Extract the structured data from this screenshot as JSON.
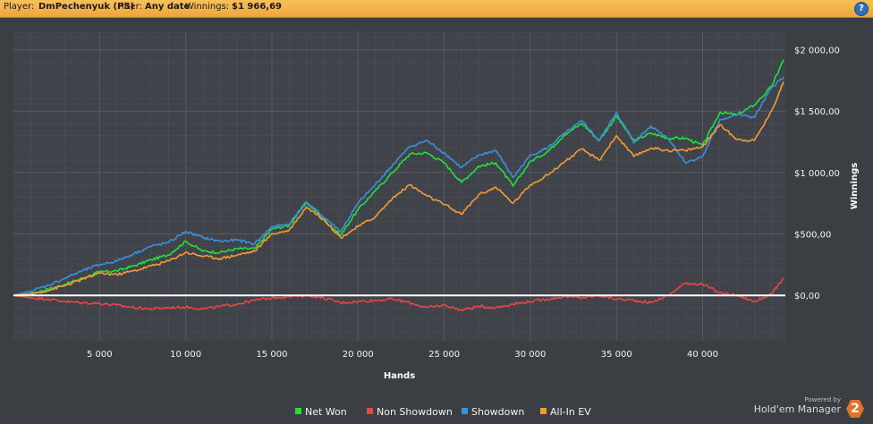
{
  "header": {
    "player_label": "Player:",
    "player_value": "DmPechenyuk (PS)",
    "filter_label": "Filter:",
    "filter_value": "Any date",
    "winnings_label": "Winnings:",
    "winnings_value": "$1 966,69",
    "help_label": "?"
  },
  "branding": {
    "powered_by": "Powered by",
    "name": "Hold'em Manager",
    "logo_text": "2"
  },
  "colors": {
    "background": "#3b3f44",
    "plot_bg": "#40444a",
    "grid": "#555a61",
    "zero_line": "#ffffff",
    "header": "#eea53a",
    "brand_icon": "#e2722a"
  },
  "chart_data": {
    "type": "line",
    "xlabel": "Hands",
    "ylabel": "Winnings",
    "xlim": [
      0,
      44800
    ],
    "ylim": [
      -370,
      2150
    ],
    "x_ticks": [
      5000,
      10000,
      15000,
      20000,
      25000,
      30000,
      35000,
      40000
    ],
    "x_tick_labels": [
      "5 000",
      "10 000",
      "15 000",
      "20 000",
      "25 000",
      "30 000",
      "35 000",
      "40 000"
    ],
    "y_ticks": [
      0,
      500,
      1000,
      1500,
      2000
    ],
    "y_tick_labels": [
      "$0,00",
      "$500,00",
      "$1 000,00",
      "$1 500,00",
      "$2 000,00"
    ],
    "grid": true,
    "legend_position": "bottom-center",
    "series": [
      {
        "name": "Net Won",
        "color": "#22e03a",
        "x": [
          0,
          1000,
          2000,
          3000,
          4000,
          5000,
          6000,
          7000,
          8000,
          9000,
          10000,
          11000,
          12000,
          13000,
          14000,
          15000,
          16000,
          17000,
          18000,
          19000,
          20000,
          21000,
          22000,
          23000,
          24000,
          25000,
          26000,
          27000,
          28000,
          29000,
          30000,
          31000,
          32000,
          33000,
          34000,
          35000,
          36000,
          37000,
          38000,
          39000,
          40000,
          41000,
          42000,
          43000,
          44000,
          44700
        ],
        "y": [
          0,
          15,
          50,
          90,
          140,
          190,
          200,
          240,
          290,
          330,
          440,
          360,
          350,
          380,
          380,
          540,
          570,
          760,
          620,
          490,
          700,
          850,
          1000,
          1150,
          1160,
          1080,
          920,
          1050,
          1080,
          890,
          1090,
          1170,
          1310,
          1400,
          1260,
          1460,
          1260,
          1320,
          1280,
          1280,
          1220,
          1490,
          1470,
          1550,
          1700,
          1920
        ]
      },
      {
        "name": "Non Showdown",
        "color": "#e84646",
        "x": [
          0,
          1000,
          2000,
          3000,
          4000,
          5000,
          6000,
          7000,
          8000,
          9000,
          10000,
          11000,
          12000,
          13000,
          14000,
          15000,
          16000,
          17000,
          18000,
          19000,
          20000,
          21000,
          22000,
          23000,
          24000,
          25000,
          26000,
          27000,
          28000,
          29000,
          30000,
          31000,
          32000,
          33000,
          34000,
          35000,
          36000,
          37000,
          38000,
          39000,
          40000,
          41000,
          42000,
          43000,
          44000,
          44700
        ],
        "y": [
          0,
          -20,
          -30,
          -50,
          -60,
          -65,
          -80,
          -100,
          -110,
          -100,
          -95,
          -110,
          -90,
          -70,
          -40,
          -20,
          -10,
          0,
          -20,
          -60,
          -50,
          -40,
          -30,
          -60,
          -100,
          -80,
          -120,
          -90,
          -100,
          -70,
          -50,
          -30,
          -10,
          -20,
          0,
          -30,
          -40,
          -60,
          0,
          100,
          90,
          20,
          0,
          -50,
          10,
          140
        ]
      },
      {
        "name": "Showdown",
        "color": "#3a8fde",
        "x": [
          0,
          1000,
          2000,
          3000,
          4000,
          5000,
          6000,
          7000,
          8000,
          9000,
          10000,
          11000,
          12000,
          13000,
          14000,
          15000,
          16000,
          17000,
          18000,
          19000,
          20000,
          21000,
          22000,
          23000,
          24000,
          25000,
          26000,
          27000,
          28000,
          29000,
          30000,
          31000,
          32000,
          33000,
          34000,
          35000,
          36000,
          37000,
          38000,
          39000,
          40000,
          41000,
          42000,
          43000,
          44000,
          44700
        ],
        "y": [
          0,
          35,
          80,
          140,
          200,
          250,
          280,
          340,
          400,
          430,
          520,
          470,
          440,
          450,
          420,
          560,
          580,
          760,
          640,
          520,
          750,
          900,
          1060,
          1210,
          1260,
          1160,
          1040,
          1140,
          1180,
          960,
          1140,
          1200,
          1320,
          1420,
          1260,
          1490,
          1240,
          1380,
          1280,
          1080,
          1130,
          1430,
          1470,
          1450,
          1690,
          1780
        ]
      },
      {
        "name": "All-In EV",
        "color": "#f39a32",
        "x": [
          0,
          1000,
          2000,
          3000,
          4000,
          5000,
          6000,
          7000,
          8000,
          9000,
          10000,
          11000,
          12000,
          13000,
          14000,
          15000,
          16000,
          17000,
          18000,
          19000,
          20000,
          21000,
          22000,
          23000,
          24000,
          25000,
          26000,
          27000,
          28000,
          29000,
          30000,
          31000,
          32000,
          33000,
          34000,
          35000,
          36000,
          37000,
          38000,
          39000,
          40000,
          41000,
          42000,
          43000,
          44000,
          44700
        ],
        "y": [
          0,
          10,
          40,
          80,
          130,
          180,
          170,
          200,
          240,
          280,
          350,
          320,
          300,
          330,
          360,
          500,
          530,
          720,
          620,
          470,
          560,
          640,
          790,
          900,
          810,
          740,
          660,
          820,
          880,
          750,
          900,
          980,
          1090,
          1190,
          1100,
          1300,
          1130,
          1200,
          1180,
          1180,
          1210,
          1390,
          1270,
          1260,
          1500,
          1740
        ]
      }
    ]
  }
}
